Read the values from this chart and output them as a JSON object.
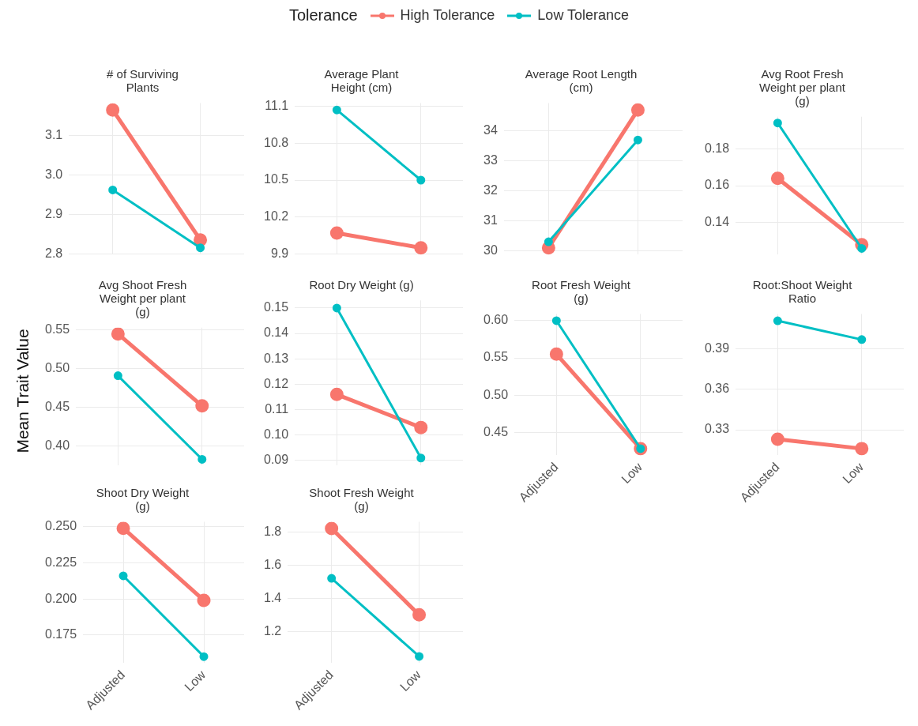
{
  "chart_data": [
    {
      "type": "line",
      "title": "# of Surviving Plants",
      "categories": [
        null,
        null
      ],
      "legend_title": "Tolerance",
      "legend": "top",
      "grid": true,
      "marker": "circle",
      "line_style": "solid",
      "tick_labels": "y",
      "ylim": [
        2.7975,
        3.1825
      ],
      "yticks": [
        2.8,
        2.9,
        {
          "value": 3,
          "label": "3.0"
        },
        3.1
      ],
      "series": [
        {
          "name": "High Tolerance",
          "color": "#f8766d",
          "values": [
            3.165,
            2.835
          ]
        },
        {
          "name": "Low Tolerance",
          "color": "#00bfc4",
          "values": [
            2.962,
            2.815
          ]
        }
      ]
    },
    {
      "type": "line",
      "title": "Average Plant Height (cm)",
      "categories": [
        null,
        null
      ],
      "grid": true,
      "marker": "circle",
      "line_style": "solid",
      "tick_labels": "y",
      "ylim": [
        9.894,
        11.126
      ],
      "yticks": [
        9.9,
        10.2,
        10.5,
        10.8,
        11.1
      ],
      "series": [
        {
          "color": "#f8766d",
          "values": [
            10.07,
            9.95
          ]
        },
        {
          "color": "#00bfc4",
          "values": [
            11.07,
            10.5
          ]
        }
      ]
    },
    {
      "type": "line",
      "title": "Average Root Length (cm)",
      "categories": [
        null,
        null
      ],
      "grid": true,
      "marker": "circle",
      "line_style": "solid",
      "tick_labels": "y",
      "ylim": [
        29.87,
        34.93
      ],
      "yticks": [
        30,
        31,
        32,
        33,
        34
      ],
      "series": [
        {
          "color": "#f8766d",
          "values": [
            30.1,
            34.7
          ]
        },
        {
          "color": "#00bfc4",
          "values": [
            30.3,
            33.7
          ]
        }
      ]
    },
    {
      "type": "line",
      "title": "Avg Root Fresh Weight per plant (g)",
      "categories": [
        null,
        null
      ],
      "grid": true,
      "marker": "circle",
      "line_style": "solid",
      "tick_labels": "y",
      "ylim": [
        0.1226,
        0.1974
      ],
      "yticks": [
        0.14,
        0.16,
        0.18
      ],
      "series": [
        {
          "color": "#f8766d",
          "values": [
            0.164,
            0.128
          ]
        },
        {
          "color": "#00bfc4",
          "values": [
            0.194,
            0.126
          ]
        }
      ]
    },
    {
      "type": "line",
      "title": "Avg Shoot Fresh Weight per plant (g)",
      "ylabel": "Mean Trait Value",
      "categories": [
        null,
        null
      ],
      "grid": true,
      "marker": "circle",
      "line_style": "solid",
      "tick_labels": "y",
      "ylim": [
        0.3749,
        0.5531
      ],
      "yticks": [
        {
          "value": 0.4,
          "label": "0.40"
        },
        {
          "value": 0.45,
          "label": "0.45"
        },
        {
          "value": 0.5,
          "label": "0.50"
        },
        {
          "value": 0.55,
          "label": "0.55"
        }
      ],
      "series": [
        {
          "color": "#f8766d",
          "values": [
            0.545,
            0.452
          ]
        },
        {
          "color": "#00bfc4",
          "values": [
            0.491,
            0.383
          ]
        }
      ]
    },
    {
      "type": "line",
      "title": "Root Dry Weight (g)",
      "categories": [
        null,
        null
      ],
      "grid": true,
      "marker": "circle",
      "line_style": "solid",
      "tick_labels": "y",
      "ylim": [
        0.088,
        0.153
      ],
      "yticks": [
        0.09,
        {
          "value": 0.1,
          "label": "0.10"
        },
        0.11,
        0.12,
        0.13,
        0.14,
        0.15
      ],
      "series": [
        {
          "color": "#f8766d",
          "values": [
            0.116,
            0.103
          ]
        },
        {
          "color": "#00bfc4",
          "values": [
            0.15,
            0.091
          ]
        }
      ]
    },
    {
      "type": "line",
      "title": "Root Fresh Weight (g)",
      "categories": [
        "Adjusted",
        "Low"
      ],
      "grid": true,
      "marker": "circle",
      "line_style": "solid",
      "ylim": [
        0.419,
        0.609
      ],
      "yticks": [
        0.45,
        {
          "value": 0.5,
          "label": "0.50"
        },
        0.55,
        {
          "value": 0.6,
          "label": "0.60"
        }
      ],
      "series": [
        {
          "color": "#f8766d",
          "values": [
            0.555,
            0.428
          ]
        },
        {
          "color": "#00bfc4",
          "values": [
            0.6,
            0.428
          ]
        }
      ]
    },
    {
      "type": "line",
      "title": "Root:Shoot Weight Ratio",
      "categories": [
        "Adjusted",
        "Low"
      ],
      "grid": true,
      "marker": "circle",
      "line_style": "solid",
      "ylim": [
        0.311,
        0.416
      ],
      "yticks": [
        0.33,
        0.36,
        0.39
      ],
      "series": [
        {
          "color": "#f8766d",
          "values": [
            0.323,
            0.316
          ]
        },
        {
          "color": "#00bfc4",
          "values": [
            0.411,
            0.397
          ]
        }
      ]
    },
    {
      "type": "line",
      "title": "Shoot Dry Weight (g)",
      "categories": [
        "Adjusted",
        "Low"
      ],
      "grid": true,
      "marker": "circle",
      "line_style": "solid",
      "ylim": [
        0.1555,
        0.2535
      ],
      "yticks": [
        0.175,
        {
          "value": 0.2,
          "label": "0.200"
        },
        0.225,
        {
          "value": 0.25,
          "label": "0.250"
        }
      ],
      "series": [
        {
          "color": "#f8766d",
          "values": [
            0.249,
            0.199
          ]
        },
        {
          "color": "#00bfc4",
          "values": [
            0.216,
            0.16
          ]
        }
      ]
    },
    {
      "type": "line",
      "title": "Shoot Fresh Weight (g)",
      "categories": [
        "Adjusted",
        "Low"
      ],
      "grid": true,
      "marker": "circle",
      "line_style": "solid",
      "ylim": [
        1.01,
        1.86
      ],
      "yticks": [
        1.2,
        1.4,
        1.6,
        1.8
      ],
      "series": [
        {
          "color": "#f8766d",
          "values": [
            1.82,
            1.3
          ]
        },
        {
          "color": "#00bfc4",
          "values": [
            1.52,
            1.05
          ]
        }
      ]
    }
  ]
}
